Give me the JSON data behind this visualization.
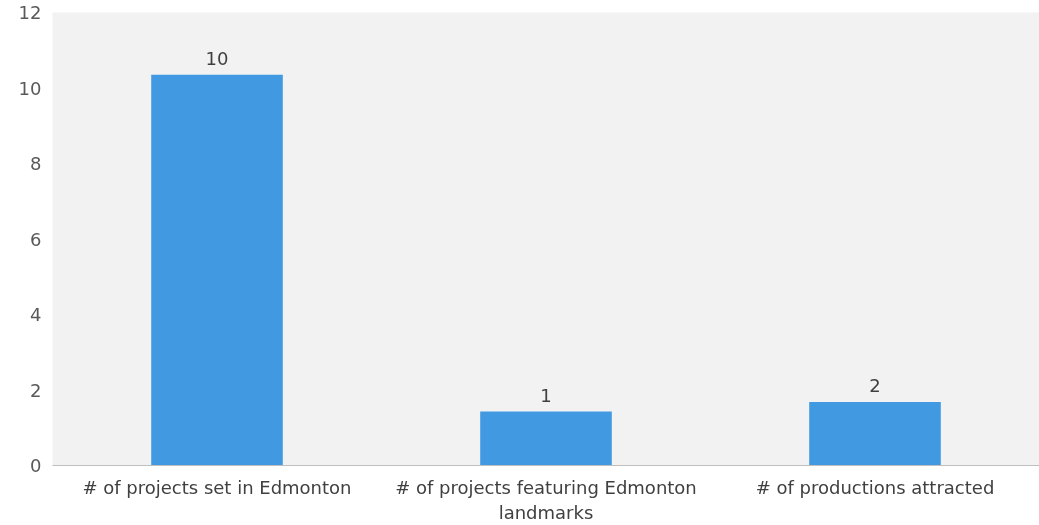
{
  "chart_data": {
    "type": "bar",
    "categories": [
      "# of projects set in Edmonton",
      "# of projects featuring Edmonton landmarks",
      "# of productions attracted"
    ],
    "values": [
      10.35,
      1.43,
      1.68
    ],
    "value_labels": [
      "10",
      "1",
      "2"
    ],
    "color": "#4199e1",
    "ylim": [
      0,
      12
    ],
    "yticks": [
      0,
      2,
      4,
      6,
      8,
      10,
      12
    ],
    "grid": false
  }
}
